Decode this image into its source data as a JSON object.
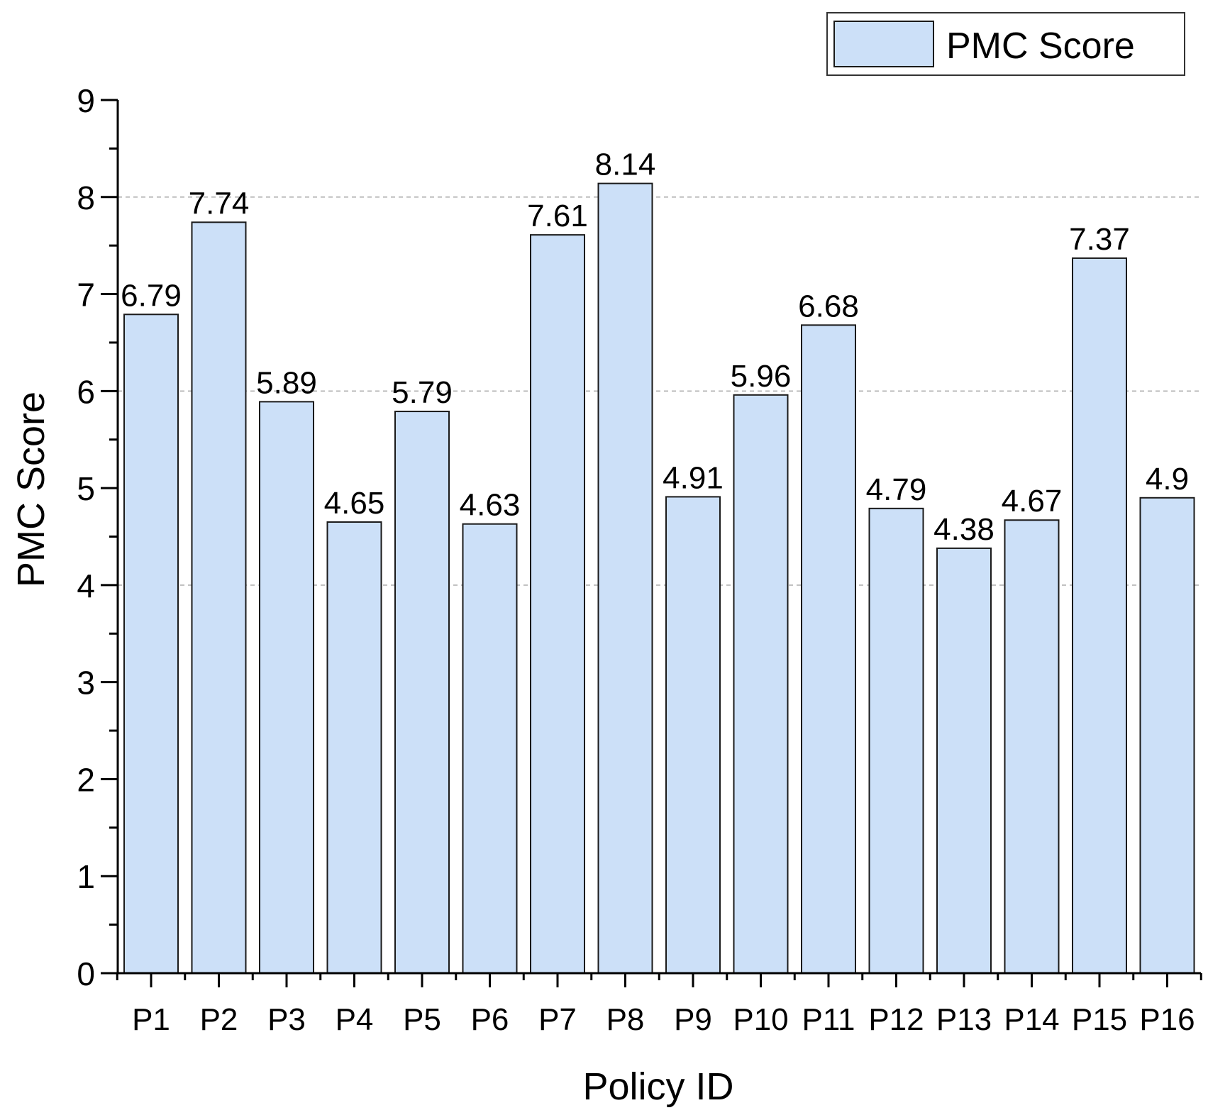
{
  "chart_data": {
    "type": "bar",
    "title": "",
    "xlabel": "Policy ID",
    "ylabel": "PMC Score",
    "categories": [
      "P1",
      "P2",
      "P3",
      "P4",
      "P5",
      "P6",
      "P7",
      "P8",
      "P9",
      "P10",
      "P11",
      "P12",
      "P13",
      "P14",
      "P15",
      "P16"
    ],
    "series": [
      {
        "name": "PMC Score",
        "values": [
          6.79,
          7.74,
          5.89,
          4.65,
          5.79,
          4.63,
          7.61,
          8.14,
          4.91,
          5.96,
          6.68,
          4.79,
          4.38,
          4.67,
          7.37,
          4.9
        ],
        "data_labels": [
          "6.79",
          "7.74",
          "5.89",
          "4.65",
          "5.79",
          "4.63",
          "7.61",
          "8.14",
          "4.91",
          "5.96",
          "6.68",
          "4.79",
          "4.38",
          "4.67",
          "7.37",
          "4.9"
        ],
        "color": "#cce0f8",
        "stroke": "#1a1a1a"
      }
    ],
    "ylim": [
      0,
      9
    ],
    "yticks": [
      "0",
      "1",
      "2",
      "3",
      "4",
      "5",
      "6",
      "7",
      "8",
      "9"
    ],
    "grid": {
      "horizontal": true,
      "values": [
        4,
        6,
        8
      ],
      "style": "dashed",
      "color": "#b0b0b0"
    },
    "legend": {
      "position": "top-right",
      "entries": [
        "PMC Score"
      ]
    }
  }
}
